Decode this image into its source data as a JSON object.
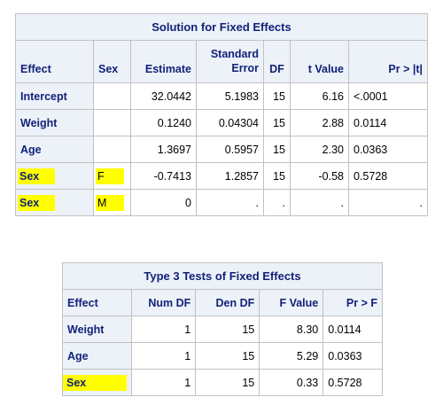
{
  "table1": {
    "caption": "Solution for Fixed Effects",
    "headers": {
      "effect": "Effect",
      "sex": "Sex",
      "estimate": "Estimate",
      "stderr_line1": "Standard",
      "stderr_line2": "Error",
      "df": "DF",
      "tvalue": "t Value",
      "pr": "Pr > |t|"
    },
    "rows": [
      {
        "effect": "Intercept",
        "sex": "",
        "estimate": "32.0442",
        "stderr": "5.1983",
        "df": "15",
        "tvalue": "6.16",
        "pr": "<.0001"
      },
      {
        "effect": "Weight",
        "sex": "",
        "estimate": "0.1240",
        "stderr": "0.04304",
        "df": "15",
        "tvalue": "2.88",
        "pr": "0.0114"
      },
      {
        "effect": "Age",
        "sex": "",
        "estimate": "1.3697",
        "stderr": "0.5957",
        "df": "15",
        "tvalue": "2.30",
        "pr": "0.0363"
      },
      {
        "effect": "Sex",
        "sex": "F",
        "estimate": "-0.7413",
        "stderr": "1.2857",
        "df": "15",
        "tvalue": "-0.58",
        "pr": "0.5728"
      },
      {
        "effect": "Sex",
        "sex": "M",
        "estimate": "0",
        "stderr": ".",
        "df": ".",
        "tvalue": ".",
        "pr": "."
      }
    ]
  },
  "table2": {
    "caption": "Type 3 Tests of Fixed Effects",
    "headers": {
      "effect": "Effect",
      "numdf": "Num DF",
      "dendf": "Den DF",
      "fvalue": "F Value",
      "pr": "Pr > F"
    },
    "rows": [
      {
        "effect": "Weight",
        "numdf": "1",
        "dendf": "15",
        "fvalue": "8.30",
        "pr": "0.0114"
      },
      {
        "effect": "Age",
        "numdf": "1",
        "dendf": "15",
        "fvalue": "5.29",
        "pr": "0.0363"
      },
      {
        "effect": "Sex",
        "numdf": "1",
        "dendf": "15",
        "fvalue": "0.33",
        "pr": "0.5728"
      }
    ]
  },
  "highlight_color": "#ffff00",
  "header_bg": "#edf2f9",
  "header_text_color": "#112277"
}
